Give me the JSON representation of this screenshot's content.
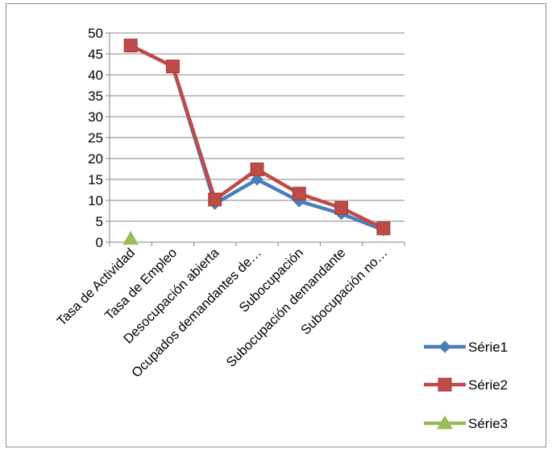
{
  "chart_data": {
    "type": "line",
    "title": "",
    "xlabel": "",
    "ylabel": "",
    "ylim": [
      0,
      50
    ],
    "yticks": [
      0,
      5,
      10,
      15,
      20,
      25,
      30,
      35,
      40,
      45,
      50
    ],
    "grid": true,
    "legend_position": "right-bottom",
    "categories": [
      "Tasa de Actividad",
      "Tasa de Empleo",
      "Desocupación abierta",
      "Ocupados demandantes de…",
      "Subocupación",
      "Subocupación demandante",
      "Subocupación no…"
    ],
    "series": [
      {
        "name": "Série1",
        "color": "#4a7ebb",
        "marker": "diamond",
        "values": [
          47,
          42,
          9.2,
          15,
          9.8,
          6.8,
          2.9
        ]
      },
      {
        "name": "Série2",
        "color": "#be4b48",
        "marker": "square",
        "values": [
          47,
          42,
          10.2,
          17.4,
          11.6,
          8.2,
          3.3
        ]
      },
      {
        "name": "Série3",
        "color": "#9bbb59",
        "marker": "triangle",
        "values": [
          0.8,
          null,
          null,
          null,
          null,
          null,
          null
        ]
      }
    ]
  }
}
